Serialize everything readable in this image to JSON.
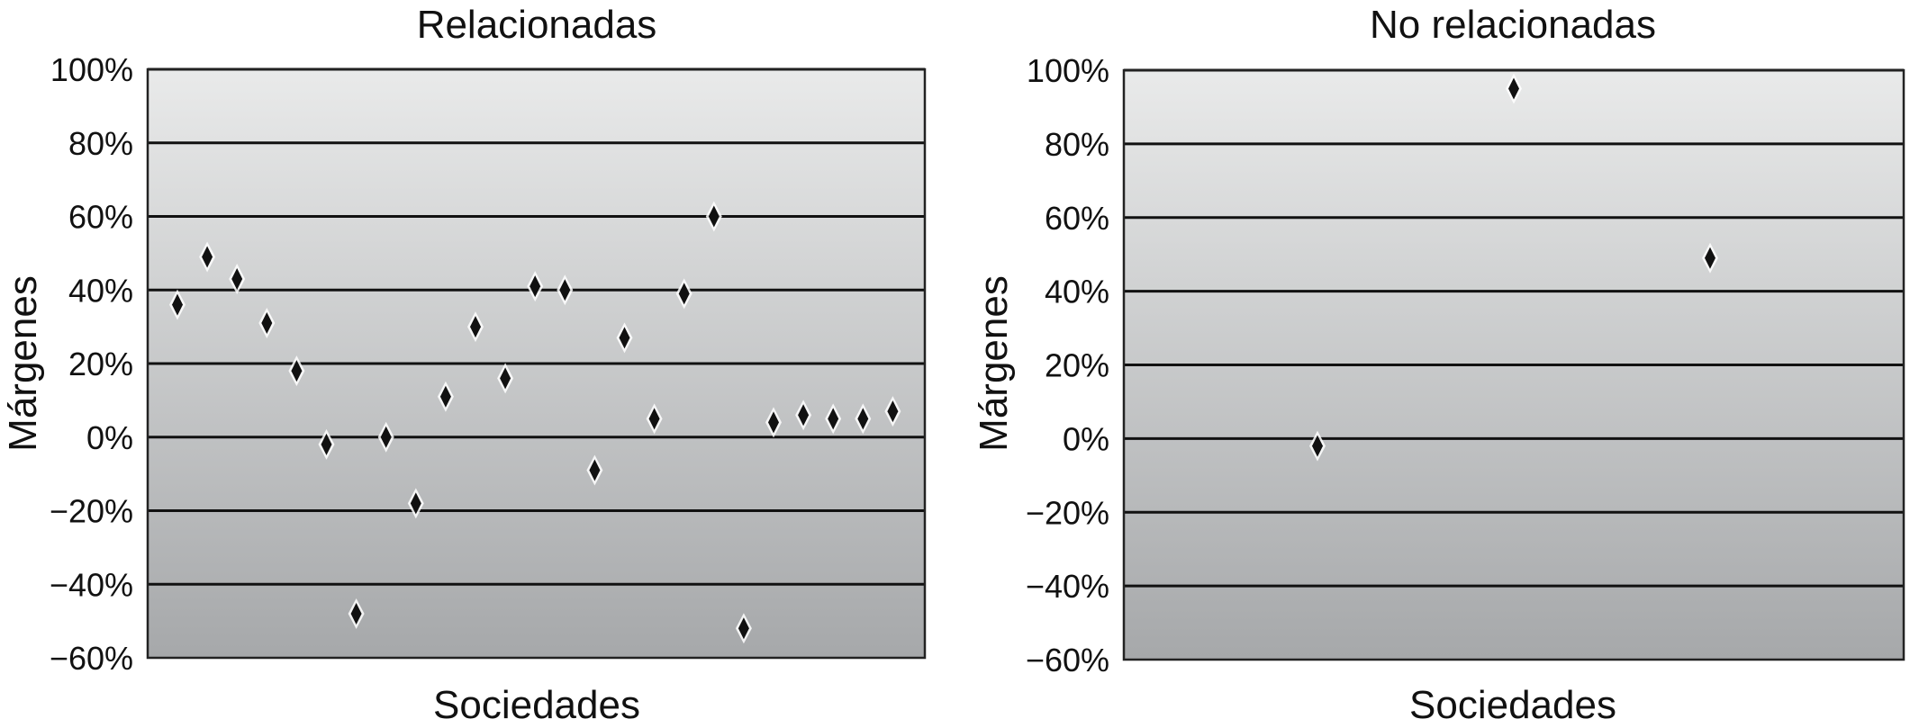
{
  "chart_data": [
    {
      "type": "scatter",
      "title": "Relacionadas",
      "xlabel": "Sociedades",
      "ylabel": "Márgenes",
      "ylim": [
        -60,
        100
      ],
      "yticks": [
        -60,
        -40,
        -20,
        0,
        20,
        40,
        60,
        80,
        100
      ],
      "ytick_labels": [
        "−60%",
        "−40%",
        "−20%",
        "0%",
        "20%",
        "40%",
        "60%",
        "80%",
        "100%"
      ],
      "grid": true,
      "marker": "diamond",
      "points": [
        {
          "x": 1,
          "y": 36
        },
        {
          "x": 2,
          "y": 49
        },
        {
          "x": 3,
          "y": 43
        },
        {
          "x": 4,
          "y": 31
        },
        {
          "x": 5,
          "y": 18
        },
        {
          "x": 6,
          "y": -2
        },
        {
          "x": 7,
          "y": -48
        },
        {
          "x": 8,
          "y": 0
        },
        {
          "x": 9,
          "y": -18
        },
        {
          "x": 10,
          "y": 11
        },
        {
          "x": 11,
          "y": 30
        },
        {
          "x": 12,
          "y": 16
        },
        {
          "x": 13,
          "y": 41
        },
        {
          "x": 14,
          "y": 40
        },
        {
          "x": 15,
          "y": -9
        },
        {
          "x": 16,
          "y": 27
        },
        {
          "x": 17,
          "y": 5
        },
        {
          "x": 18,
          "y": 39
        },
        {
          "x": 19,
          "y": 60
        },
        {
          "x": 20,
          "y": -52
        },
        {
          "x": 21,
          "y": 4
        },
        {
          "x": 22,
          "y": 6
        },
        {
          "x": 23,
          "y": 5
        },
        {
          "x": 24,
          "y": 5
        },
        {
          "x": 25,
          "y": 7
        }
      ]
    },
    {
      "type": "scatter",
      "title": "No relacionadas",
      "xlabel": "Sociedades",
      "ylabel": "Márgenes",
      "ylim": [
        -60,
        100
      ],
      "yticks": [
        -60,
        -40,
        -20,
        0,
        20,
        40,
        60,
        80,
        100
      ],
      "ytick_labels": [
        "−60%",
        "−40%",
        "−20%",
        "0%",
        "20%",
        "40%",
        "60%",
        "80%",
        "100%"
      ],
      "grid": true,
      "marker": "diamond",
      "points": [
        {
          "x": 1,
          "y": -2
        },
        {
          "x": 2,
          "y": 95
        },
        {
          "x": 3,
          "y": 49
        }
      ]
    }
  ],
  "colors": {
    "marker": "#111111",
    "marker_highlight": "#ffffff",
    "grid": "#111111",
    "plot_bg_top": "#e9eaea",
    "plot_bg_bottom": "#a6a8aa"
  }
}
